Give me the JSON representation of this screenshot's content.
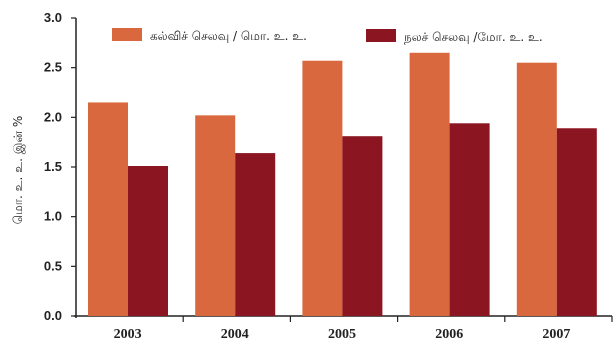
{
  "chart_data": {
    "type": "bar",
    "categories": [
      "2003",
      "2004",
      "2005",
      "2006",
      "2007"
    ],
    "series": [
      {
        "name": "கல்விச் செலவு / மொ. உ. உ.",
        "values": [
          2.15,
          2.02,
          2.57,
          2.65,
          2.55
        ],
        "color": "#d9683f"
      },
      {
        "name": "நலச் செலவு /மோ. உ. உ.",
        "values": [
          1.51,
          1.64,
          1.81,
          1.94,
          1.89
        ],
        "color": "#8b1521"
      }
    ],
    "ylabel": "மொ. உ. உ. இன் %",
    "ylim": [
      0,
      3.0
    ],
    "yticks": [
      "0.0",
      "0.5",
      "1.0",
      "1.5",
      "2.0",
      "2.5",
      "3.0"
    ],
    "grid": false,
    "legend_position": "top"
  }
}
